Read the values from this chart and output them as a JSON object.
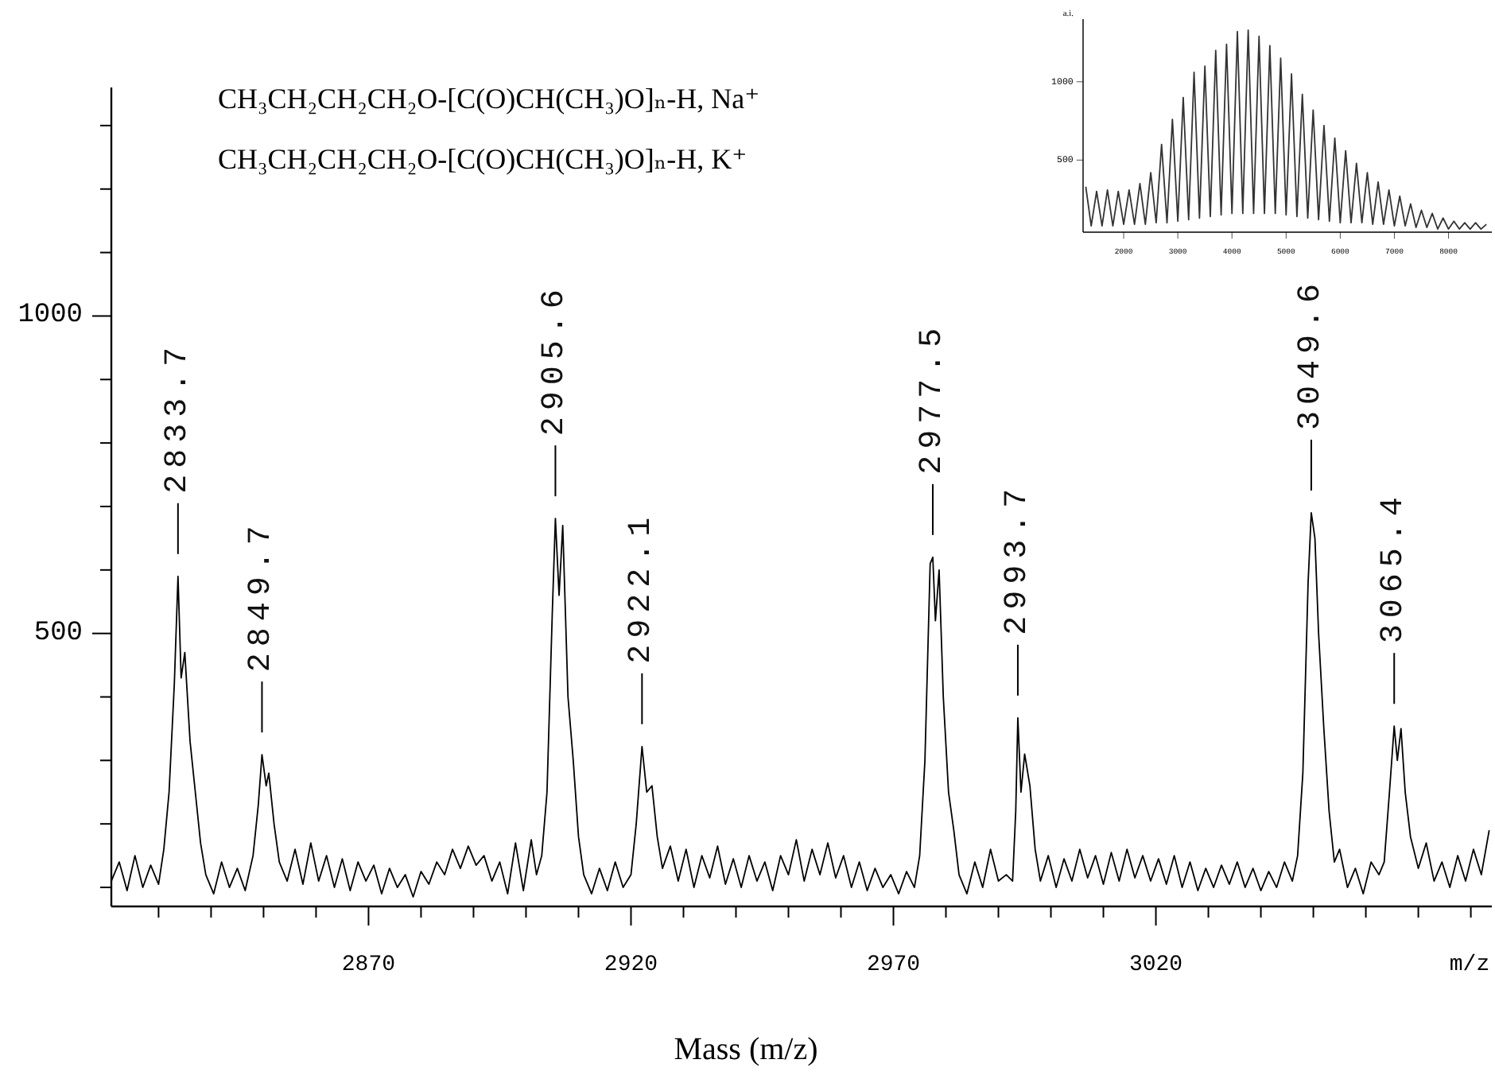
{
  "chart_data": [
    {
      "type": "line",
      "xlabel": "Mass (m/z)",
      "xlim": [
        2821,
        3084
      ],
      "ylim": [
        70,
        1360
      ],
      "xticks": [
        {
          "value": 2830,
          "label": null
        },
        {
          "value": 2840,
          "label": null
        },
        {
          "value": 2850,
          "label": null
        },
        {
          "value": 2860,
          "label": null
        },
        2870,
        {
          "value": 2880,
          "label": null
        },
        {
          "value": 2890,
          "label": null
        },
        {
          "value": 2900,
          "label": null
        },
        {
          "value": 2910,
          "label": null
        },
        2920,
        {
          "value": 2930,
          "label": null
        },
        {
          "value": 2940,
          "label": null
        },
        {
          "value": 2950,
          "label": null
        },
        {
          "value": 2960,
          "label": null
        },
        2970,
        {
          "value": 2980,
          "label": null
        },
        {
          "value": 2990,
          "label": null
        },
        {
          "value": 3000,
          "label": null
        },
        {
          "value": 3010,
          "label": null
        },
        3020,
        {
          "value": 3030,
          "label": null
        },
        {
          "value": 3040,
          "label": null
        },
        {
          "value": 3050,
          "label": null
        },
        {
          "value": 3060,
          "label": null
        },
        {
          "value": 3070,
          "label": null
        },
        {
          "value": 3080,
          "label": null
        }
      ],
      "yticks": [
        {
          "value": 100,
          "label": null
        },
        {
          "value": 200,
          "label": null
        },
        {
          "value": 300,
          "label": null
        },
        {
          "value": 400,
          "label": null
        },
        {
          "value": 500,
          "label": "500"
        },
        {
          "value": 600,
          "label": null
        },
        {
          "value": 700,
          "label": null
        },
        {
          "value": 800,
          "label": null
        },
        {
          "value": 900,
          "label": null
        },
        {
          "value": 1000,
          "label": "1000"
        },
        {
          "value": 1100,
          "label": null
        },
        {
          "value": 1200,
          "label": null
        },
        {
          "value": 1300,
          "label": null
        }
      ],
      "x": [
        2821,
        2822.5,
        2824,
        2825.5,
        2827,
        2828.5,
        2830,
        2831,
        2832,
        2833,
        2833.7,
        2834.3,
        2835,
        2836,
        2837,
        2838,
        2839,
        2840.5,
        2842,
        2843.5,
        2845,
        2846.5,
        2848,
        2849,
        2849.7,
        2850.5,
        2851,
        2852,
        2853,
        2854.5,
        2856,
        2857.5,
        2859,
        2860.5,
        2862,
        2863.5,
        2865,
        2866.5,
        2868,
        2869.5,
        2871,
        2872.5,
        2874,
        2875.5,
        2877,
        2878.5,
        2880,
        2881.5,
        2883,
        2884.5,
        2886,
        2887.5,
        2889,
        2890.5,
        2892,
        2893.5,
        2895,
        2896.5,
        2898,
        2899.5,
        2901,
        2902,
        2903,
        2904,
        2905,
        2905.6,
        2906.3,
        2907,
        2908,
        2909,
        2910,
        2911,
        2912.5,
        2914,
        2915.5,
        2917,
        2918.5,
        2920,
        2921,
        2922.1,
        2923,
        2924,
        2925,
        2926,
        2927.5,
        2929,
        2930.5,
        2932,
        2933.5,
        2935,
        2936.5,
        2938,
        2939.5,
        2941,
        2942.5,
        2944,
        2945.5,
        2947,
        2948.5,
        2950,
        2951.5,
        2953,
        2954.5,
        2956,
        2957.5,
        2959,
        2960.5,
        2962,
        2963.5,
        2965,
        2966.5,
        2968,
        2969.5,
        2971,
        2972.5,
        2974,
        2975,
        2976,
        2977,
        2977.5,
        2978,
        2978.7,
        2979.5,
        2980.5,
        2981.5,
        2982.5,
        2984,
        2985.5,
        2987,
        2988.5,
        2990,
        2991.5,
        2992.7,
        2993.3,
        2993.7,
        2994.3,
        2995,
        2996,
        2997,
        2998,
        2999.5,
        3001,
        3002.5,
        3004,
        3005.5,
        3007,
        3008.5,
        3010,
        3011.5,
        3013,
        3014.5,
        3016,
        3017.5,
        3019,
        3020.5,
        3022,
        3023.5,
        3025,
        3026.5,
        3028,
        3029.5,
        3031,
        3032.5,
        3034,
        3035.5,
        3037,
        3038.5,
        3040,
        3041.5,
        3043,
        3044.5,
        3046,
        3047,
        3048,
        3049,
        3049.6,
        3050.3,
        3051,
        3052,
        3053,
        3054,
        3055,
        3056.5,
        3058,
        3059.5,
        3061,
        3062.5,
        3063.5,
        3064.5,
        3065.4,
        3066,
        3066.7,
        3067.5,
        3068.5,
        3070,
        3071.5,
        3073,
        3074.5,
        3076,
        3077.5,
        3079,
        3080.5,
        3082,
        3083.5
      ],
      "series": [
        {
          "color": "#000000",
          "values": [
            110,
            140,
            95,
            150,
            100,
            135,
            105,
            160,
            250,
            420,
            590,
            430,
            470,
            330,
            250,
            170,
            120,
            90,
            140,
            100,
            130,
            95,
            150,
            230,
            309,
            260,
            280,
            200,
            140,
            110,
            160,
            105,
            170,
            110,
            150,
            100,
            145,
            95,
            140,
            110,
            135,
            90,
            130,
            100,
            120,
            85,
            125,
            105,
            140,
            120,
            160,
            130,
            165,
            135,
            150,
            110,
            140,
            90,
            170,
            95,
            175,
            120,
            150,
            250,
            530,
            681,
            560,
            670,
            400,
            300,
            180,
            120,
            90,
            130,
            95,
            140,
            100,
            120,
            200,
            322,
            250,
            260,
            180,
            130,
            165,
            110,
            160,
            100,
            150,
            115,
            165,
            105,
            145,
            100,
            150,
            110,
            140,
            95,
            150,
            120,
            175,
            110,
            160,
            120,
            170,
            115,
            150,
            100,
            140,
            95,
            130,
            100,
            120,
            90,
            125,
            100,
            150,
            300,
            610,
            620,
            520,
            600,
            400,
            250,
            190,
            120,
            90,
            140,
            100,
            160,
            110,
            120,
            110,
            220,
            367,
            250,
            310,
            260,
            160,
            110,
            150,
            100,
            145,
            110,
            160,
            115,
            150,
            105,
            155,
            110,
            160,
            115,
            150,
            110,
            145,
            105,
            150,
            100,
            140,
            95,
            130,
            100,
            135,
            105,
            140,
            100,
            130,
            95,
            125,
            100,
            140,
            110,
            150,
            280,
            580,
            690,
            650,
            500,
            350,
            220,
            140,
            160,
            100,
            130,
            90,
            140,
            120,
            140,
            250,
            354,
            300,
            350,
            250,
            180,
            130,
            170,
            110,
            140,
            100,
            150,
            110,
            160,
            120,
            190
          ]
        }
      ],
      "annotations": [
        "CH₃CH₂CH₂CH₂O-[C(O)CH(CH₃)O]ₙ-H, Na⁺",
        "CH₃CH₂CH₂CH₂O-[C(O)CH(CH₃)O]ₙ-H, K⁺",
        "m/z",
        {
          "text": "2833.7",
          "x": 2833.7,
          "y": 590
        },
        {
          "text": "2849.7",
          "x": 2849.7,
          "y": 309
        },
        {
          "text": "2905.6",
          "x": 2905.6,
          "y": 681
        },
        {
          "text": "2922.1",
          "x": 2922.1,
          "y": 322
        },
        {
          "text": "2977.5",
          "x": 2977.5,
          "y": 620
        },
        {
          "text": "2993.7",
          "x": 2993.7,
          "y": 367
        },
        {
          "text": "3049.6",
          "x": 3049.6,
          "y": 690
        },
        {
          "text": "3065.4",
          "x": 3065.4,
          "y": 354
        }
      ]
    },
    {
      "type": "line",
      "ylabel": "a.i.",
      "xlim": [
        1250,
        8800
      ],
      "ylim": [
        40,
        1400
      ],
      "xticks": [
        2000,
        3000,
        4000,
        5000,
        6000,
        7000,
        8000
      ],
      "yticks": [
        500,
        1000
      ],
      "x": [
        1300,
        1400,
        1500,
        1600,
        1700,
        1800,
        1900,
        2000,
        2100,
        2200,
        2300,
        2400,
        2500,
        2600,
        2700,
        2800,
        2900,
        3000,
        3100,
        3200,
        3300,
        3400,
        3500,
        3600,
        3700,
        3800,
        3900,
        4000,
        4100,
        4200,
        4300,
        4400,
        4500,
        4600,
        4700,
        4800,
        4900,
        5000,
        5100,
        5200,
        5300,
        5400,
        5500,
        5600,
        5700,
        5800,
        5900,
        6000,
        6100,
        6200,
        6300,
        6400,
        6500,
        6600,
        6700,
        6800,
        6900,
        7000,
        7100,
        7200,
        7300,
        7400,
        7500,
        7600,
        7700,
        7800,
        7900,
        8000,
        8100,
        8200,
        8300,
        8400,
        8500,
        8600,
        8700
      ],
      "series": [
        {
          "color": "#333333",
          "values": [
            330,
            80,
            300,
            80,
            310,
            80,
            300,
            90,
            310,
            90,
            350,
            90,
            420,
            100,
            600,
            100,
            760,
            110,
            900,
            120,
            1060,
            130,
            1100,
            140,
            1200,
            150,
            1240,
            160,
            1320,
            160,
            1330,
            160,
            1290,
            160,
            1230,
            160,
            1150,
            150,
            1050,
            140,
            920,
            130,
            820,
            120,
            720,
            110,
            640,
            100,
            560,
            100,
            480,
            100,
            420,
            90,
            360,
            90,
            310,
            80,
            270,
            80,
            220,
            70,
            180,
            70,
            160,
            60,
            130,
            60,
            110,
            60,
            100,
            60,
            100,
            60,
            90
          ]
        }
      ]
    }
  ]
}
